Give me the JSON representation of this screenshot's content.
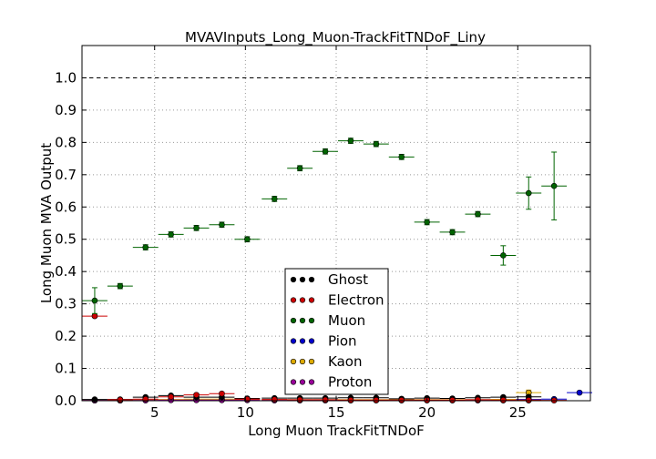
{
  "chart_data": {
    "type": "scatter",
    "title": "MVAVInputs_Long_Muon-TrackFitTNDoF_Liny",
    "xlabel": "Long Muon TrackFitTNDoF",
    "ylabel": "Long Muon MVA Output",
    "xlim": [
      1,
      29
    ],
    "ylim": [
      0,
      1.1
    ],
    "x_ticks": [
      5,
      10,
      15,
      20,
      25
    ],
    "y_ticks": [
      0.0,
      0.1,
      0.2,
      0.3,
      0.4,
      0.5,
      0.6,
      0.7,
      0.8,
      0.9,
      1.0
    ],
    "y_tick_labels": [
      "0.0",
      "0.1",
      "0.2",
      "0.3",
      "0.4",
      "0.5",
      "0.6",
      "0.7",
      "0.8",
      "0.9",
      "1.0"
    ],
    "x_tick_labels": [
      "5",
      "10",
      "15",
      "20",
      "25"
    ],
    "grid": true,
    "reference_line_y": 1.0,
    "legend_position": "bottom-center",
    "series": [
      {
        "name": "Muon",
        "color": "#006400",
        "x": [
          1.7,
          3.1,
          4.5,
          5.9,
          7.3,
          8.7,
          10.1,
          11.6,
          13.0,
          14.4,
          15.8,
          17.2,
          18.6,
          20.0,
          21.4,
          22.8,
          24.2,
          25.6,
          27.0
        ],
        "y": [
          0.31,
          0.355,
          0.475,
          0.515,
          0.535,
          0.545,
          0.5,
          0.625,
          0.72,
          0.772,
          0.805,
          0.795,
          0.755,
          0.553,
          0.522,
          0.578,
          0.45,
          0.643,
          0.665
        ],
        "yerr": [
          0.04,
          0.008,
          0.008,
          0.008,
          0.008,
          0.008,
          0.008,
          0.008,
          0.008,
          0.008,
          0.008,
          0.008,
          0.008,
          0.008,
          0.008,
          0.008,
          0.03,
          0.05,
          0.105
        ]
      },
      {
        "name": "Electron",
        "color": "#cc0000",
        "x": [
          1.7,
          3.1,
          4.5,
          5.9,
          7.3,
          8.7,
          10.1,
          11.6,
          13.0,
          14.4,
          15.8,
          17.2,
          18.6,
          20.0,
          21.4,
          22.8,
          24.2,
          25.6,
          27.0
        ],
        "y": [
          0.262,
          0.003,
          0.005,
          0.012,
          0.018,
          0.022,
          0.005,
          0.004,
          0.003,
          0.003,
          0.002,
          0.002,
          0.002,
          0.002,
          0.002,
          0.003,
          0.002,
          0.002,
          0.001
        ],
        "yerr": [
          0.004,
          0.003,
          0.003,
          0.004,
          0.004,
          0.004,
          0.003,
          0.002,
          0.002,
          0.002,
          0.002,
          0.002,
          0.002,
          0.002,
          0.002,
          0.002,
          0.002,
          0.002,
          0.002
        ]
      },
      {
        "name": "Ghost",
        "color": "#000000",
        "x": [
          1.7,
          3.1,
          4.5,
          5.9,
          7.3,
          8.7,
          10.1,
          11.6,
          13.0,
          14.4,
          15.8,
          17.2,
          18.6,
          20.0,
          21.4,
          22.8,
          24.2,
          25.6
        ],
        "y": [
          0.004,
          0.004,
          0.011,
          0.016,
          0.011,
          0.011,
          0.007,
          0.008,
          0.008,
          0.008,
          0.009,
          0.009,
          0.006,
          0.008,
          0.007,
          0.009,
          0.011,
          0.012
        ],
        "yerr": [
          0.002,
          0.002,
          0.002,
          0.002,
          0.002,
          0.002,
          0.002,
          0.002,
          0.002,
          0.002,
          0.002,
          0.002,
          0.002,
          0.002,
          0.002,
          0.002,
          0.003,
          0.004
        ]
      },
      {
        "name": "Pion",
        "color": "#0000cc",
        "x": [
          1.7,
          3.1,
          4.5,
          5.9,
          7.3,
          8.7,
          10.1,
          11.6,
          13.0,
          14.4,
          15.8,
          17.2,
          18.6,
          20.0,
          21.4,
          22.8,
          24.2,
          25.6,
          27.0,
          28.4
        ],
        "y": [
          0.001,
          0.001,
          0.002,
          0.002,
          0.002,
          0.002,
          0.002,
          0.002,
          0.002,
          0.002,
          0.002,
          0.002,
          0.002,
          0.002,
          0.002,
          0.002,
          0.003,
          0.004,
          0.005,
          0.025
        ],
        "yerr": [
          0.001,
          0.001,
          0.001,
          0.001,
          0.001,
          0.001,
          0.001,
          0.001,
          0.001,
          0.001,
          0.001,
          0.001,
          0.001,
          0.001,
          0.001,
          0.001,
          0.002,
          0.002,
          0.002,
          0.004
        ]
      },
      {
        "name": "Kaon",
        "color": "#ddaa00",
        "x": [
          1.7,
          3.1,
          4.5,
          5.9,
          7.3,
          8.7,
          10.1,
          11.6,
          13.0,
          14.4,
          15.8,
          17.2,
          18.6,
          20.0,
          21.4,
          22.8,
          24.2,
          25.6
        ],
        "y": [
          0.001,
          0.001,
          0.002,
          0.004,
          0.005,
          0.005,
          0.003,
          0.003,
          0.003,
          0.003,
          0.003,
          0.003,
          0.003,
          0.003,
          0.003,
          0.003,
          0.004,
          0.025
        ],
        "yerr": [
          0.001,
          0.001,
          0.001,
          0.002,
          0.002,
          0.002,
          0.002,
          0.002,
          0.002,
          0.002,
          0.002,
          0.002,
          0.002,
          0.002,
          0.002,
          0.002,
          0.002,
          0.008
        ]
      },
      {
        "name": "Proton",
        "color": "#990099",
        "x": [
          1.7,
          3.1,
          4.5,
          5.9,
          7.3,
          8.7,
          10.1,
          11.6,
          13.0,
          14.4,
          15.8,
          17.2,
          18.6,
          20.0,
          21.4,
          22.8,
          24.2,
          25.6
        ],
        "y": [
          0.001,
          0.001,
          0.001,
          0.002,
          0.002,
          0.002,
          0.002,
          0.001,
          0.001,
          0.001,
          0.001,
          0.001,
          0.001,
          0.001,
          0.001,
          0.001,
          0.001,
          0.001
        ],
        "yerr": [
          0.001,
          0.001,
          0.001,
          0.001,
          0.001,
          0.001,
          0.001,
          0.001,
          0.001,
          0.001,
          0.001,
          0.001,
          0.001,
          0.001,
          0.001,
          0.001,
          0.001,
          0.001
        ]
      }
    ],
    "legend_order": [
      "Ghost",
      "Electron",
      "Muon",
      "Pion",
      "Kaon",
      "Proton"
    ],
    "x_bin_half_width": 0.7
  }
}
